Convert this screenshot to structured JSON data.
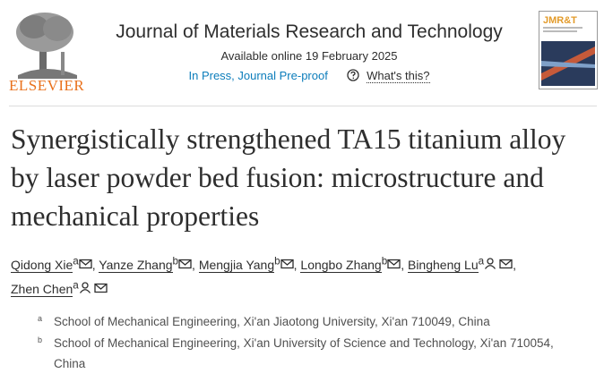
{
  "header": {
    "publisher": "ELSEVIER",
    "journal": "Journal of Materials Research and Technology",
    "availability": "Available online 19 February 2025",
    "status": "In Press, Journal Pre-proof",
    "help": "What's this?",
    "cover_label": "JMR&T"
  },
  "article": {
    "title": "Synergistically strengthened TA15 titanium alloy by laser powder bed fusion: microstructure and mechanical properties",
    "separator": ",",
    "authors": [
      {
        "name": "Qidong Xie",
        "affiliation": "a"
      },
      {
        "name": "Yanze Zhang",
        "affiliation": "b"
      },
      {
        "name": "Mengjia Yang",
        "affiliation": "b"
      },
      {
        "name": "Longbo Zhang",
        "affiliation": "b"
      },
      {
        "name": "Bingheng Lu",
        "affiliation": "a"
      },
      {
        "name": "Zhen Chen",
        "affiliation": "a"
      }
    ],
    "affiliations": [
      {
        "label": "a",
        "text": "School of Mechanical Engineering, Xi'an Jiaotong University, Xi'an 710049, China"
      },
      {
        "label": "b",
        "text": "School of Mechanical Engineering, Xi'an University of Science and Technology, Xi'an 710054, China"
      }
    ]
  }
}
